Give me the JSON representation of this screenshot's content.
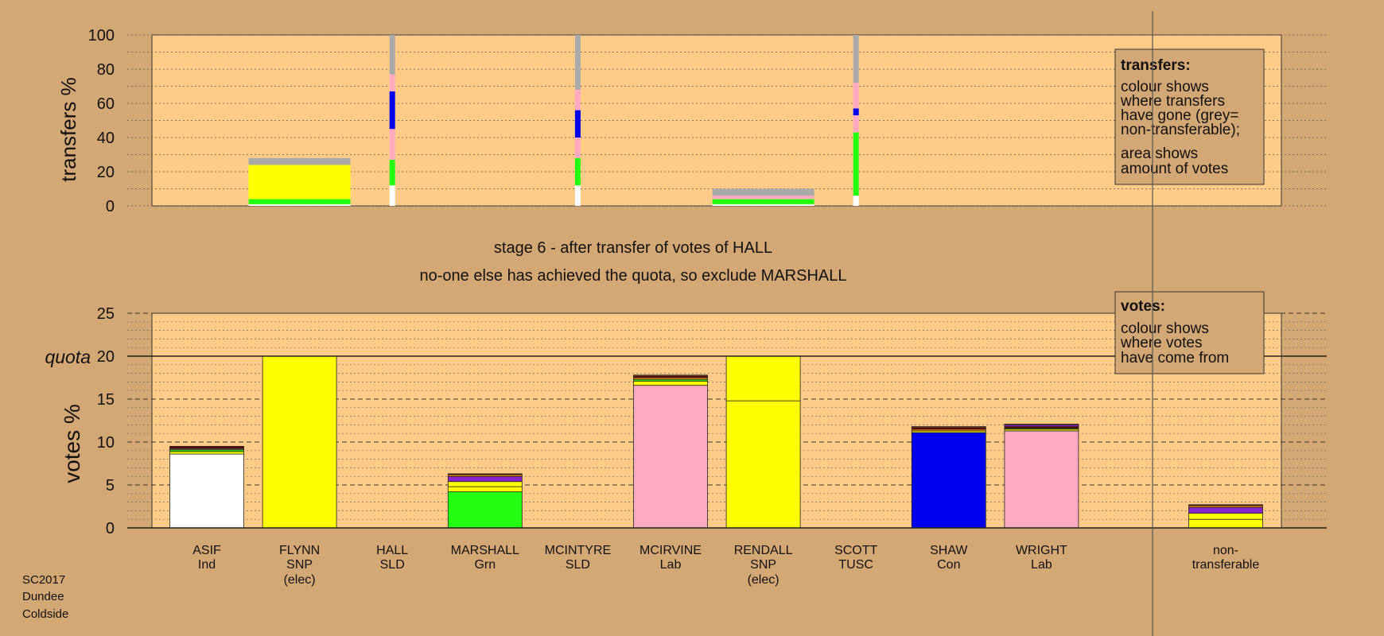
{
  "colors": {
    "background": "#d4a874",
    "panel": "#ffcc88",
    "yellow": "#ffff00",
    "green": "#22ff11",
    "blue": "#0000ee",
    "pink": "#ffaac0",
    "white": "#ffffff",
    "grey": "#aaaaaa",
    "purple": "#8822cc",
    "orange": "#ff8800",
    "darkred": "#660000"
  },
  "chart_data": [
    {
      "type": "bar",
      "name": "transfers",
      "ylabel": "transfers %",
      "ylim": [
        0,
        100
      ],
      "yticks": [
        0,
        20,
        40,
        60,
        80,
        100
      ],
      "grid": true,
      "legend": {
        "title": "transfers:",
        "lines": [
          "colour shows",
          "where transfers",
          "have gone (grey=",
          "non-transferable);"
        ],
        "lines2": [
          "area shows",
          "amount of votes"
        ]
      },
      "bars": [
        {
          "candidate": "FLYNN",
          "width": "wide",
          "segments": [
            {
              "color": "white",
              "value": 1
            },
            {
              "color": "green",
              "value": 3
            },
            {
              "color": "yellow",
              "value": 20
            },
            {
              "color": "grey",
              "value": 4
            }
          ]
        },
        {
          "candidate": "HALL",
          "width": "thin",
          "segments": [
            {
              "color": "white",
              "value": 12
            },
            {
              "color": "green",
              "value": 15
            },
            {
              "color": "pink",
              "value": 18
            },
            {
              "color": "blue",
              "value": 22
            },
            {
              "color": "pink",
              "value": 10
            },
            {
              "color": "grey",
              "value": 23
            }
          ]
        },
        {
          "candidate": "MCINTYRE",
          "width": "thin",
          "segments": [
            {
              "color": "white",
              "value": 12
            },
            {
              "color": "green",
              "value": 16
            },
            {
              "color": "pink",
              "value": 12
            },
            {
              "color": "blue",
              "value": 16
            },
            {
              "color": "pink",
              "value": 12
            },
            {
              "color": "grey",
              "value": 32
            }
          ]
        },
        {
          "candidate": "RENDALL",
          "width": "wide",
          "segments": [
            {
              "color": "white",
              "value": 1
            },
            {
              "color": "green",
              "value": 3
            },
            {
              "color": "pink",
              "value": 2
            },
            {
              "color": "grey",
              "value": 4
            }
          ]
        },
        {
          "candidate": "SCOTT",
          "width": "thin",
          "segments": [
            {
              "color": "white",
              "value": 6
            },
            {
              "color": "green",
              "value": 37
            },
            {
              "color": "pink",
              "value": 10
            },
            {
              "color": "blue",
              "value": 4
            },
            {
              "color": "pink",
              "value": 15
            },
            {
              "color": "grey",
              "value": 28
            }
          ]
        }
      ]
    },
    {
      "type": "bar",
      "name": "votes",
      "ylabel": "votes %",
      "ylim": [
        0,
        25
      ],
      "yticks": [
        0,
        5,
        10,
        15,
        20,
        25
      ],
      "quota": 20,
      "quota_label": "quota",
      "grid": true,
      "legend": {
        "title": "votes:",
        "lines": [
          "colour shows",
          "where votes",
          "have come from"
        ]
      },
      "categories": [
        {
          "name": "ASIF",
          "party": "Ind",
          "note": ""
        },
        {
          "name": "FLYNN",
          "party": "SNP",
          "note": "(elec)"
        },
        {
          "name": "HALL",
          "party": "SLD",
          "note": ""
        },
        {
          "name": "MARSHALL",
          "party": "Grn",
          "note": ""
        },
        {
          "name": "MCINTYRE",
          "party": "SLD",
          "note": ""
        },
        {
          "name": "MCIRVINE",
          "party": "Lab",
          "note": ""
        },
        {
          "name": "RENDALL",
          "party": "SNP",
          "note": "(elec)"
        },
        {
          "name": "SCOTT",
          "party": "TUSC",
          "note": ""
        },
        {
          "name": "SHAW",
          "party": "Con",
          "note": ""
        },
        {
          "name": "WRIGHT",
          "party": "Lab",
          "note": ""
        },
        {
          "name": "non-",
          "party": "transferable",
          "note": ""
        }
      ],
      "stacks": [
        [
          {
            "color": "white",
            "value": 8.6
          },
          {
            "color": "yellow",
            "value": 0.3
          },
          {
            "color": "green",
            "value": 0.2
          },
          {
            "color": "pink",
            "value": 0.1
          },
          {
            "color": "orange",
            "value": 0.1
          },
          {
            "color": "darkred",
            "value": 0.2
          }
        ],
        [
          {
            "color": "yellow",
            "value": 20
          }
        ],
        [],
        [
          {
            "color": "green",
            "value": 4.2
          },
          {
            "color": "yellow",
            "value": 0.6
          },
          {
            "color": "yellow",
            "value": 0.6
          },
          {
            "color": "purple",
            "value": 0.6
          },
          {
            "color": "orange",
            "value": 0.2
          },
          {
            "color": "darkred",
            "value": 0.1
          }
        ],
        [],
        [
          {
            "color": "pink",
            "value": 16.6
          },
          {
            "color": "yellow",
            "value": 0.5
          },
          {
            "color": "green",
            "value": 0.2
          },
          {
            "color": "orange",
            "value": 0.2
          },
          {
            "color": "darkred",
            "value": 0.2
          },
          {
            "color": "orange",
            "value": 0.1
          }
        ],
        [
          {
            "color": "yellow",
            "value": 14.8
          },
          {
            "color": "yellow",
            "value": 5.2
          }
        ],
        [],
        [
          {
            "color": "blue",
            "value": 11.1
          },
          {
            "color": "yellow",
            "value": 0.2
          },
          {
            "color": "orange",
            "value": 0.2
          },
          {
            "color": "darkred",
            "value": 0.2
          },
          {
            "color": "orange",
            "value": 0.1
          }
        ],
        [
          {
            "color": "pink",
            "value": 11.3
          },
          {
            "color": "yellow",
            "value": 0.2
          },
          {
            "color": "green",
            "value": 0.1
          },
          {
            "color": "darkred",
            "value": 0.2
          },
          {
            "color": "purple",
            "value": 0.2
          },
          {
            "color": "orange",
            "value": 0.1
          }
        ],
        [
          {
            "color": "yellow",
            "value": 1.0
          },
          {
            "color": "yellow",
            "value": 0.7
          },
          {
            "color": "purple",
            "value": 0.7
          },
          {
            "color": "orange",
            "value": 0.2
          },
          {
            "color": "darkred",
            "value": 0.1
          }
        ]
      ]
    }
  ],
  "stage_title": "stage 6 - after transfer of votes of HALL",
  "stage_subtitle": "no-one else has achieved the quota, so exclude MARSHALL",
  "footer": [
    "SC2017",
    "Dundee",
    "Coldside"
  ]
}
